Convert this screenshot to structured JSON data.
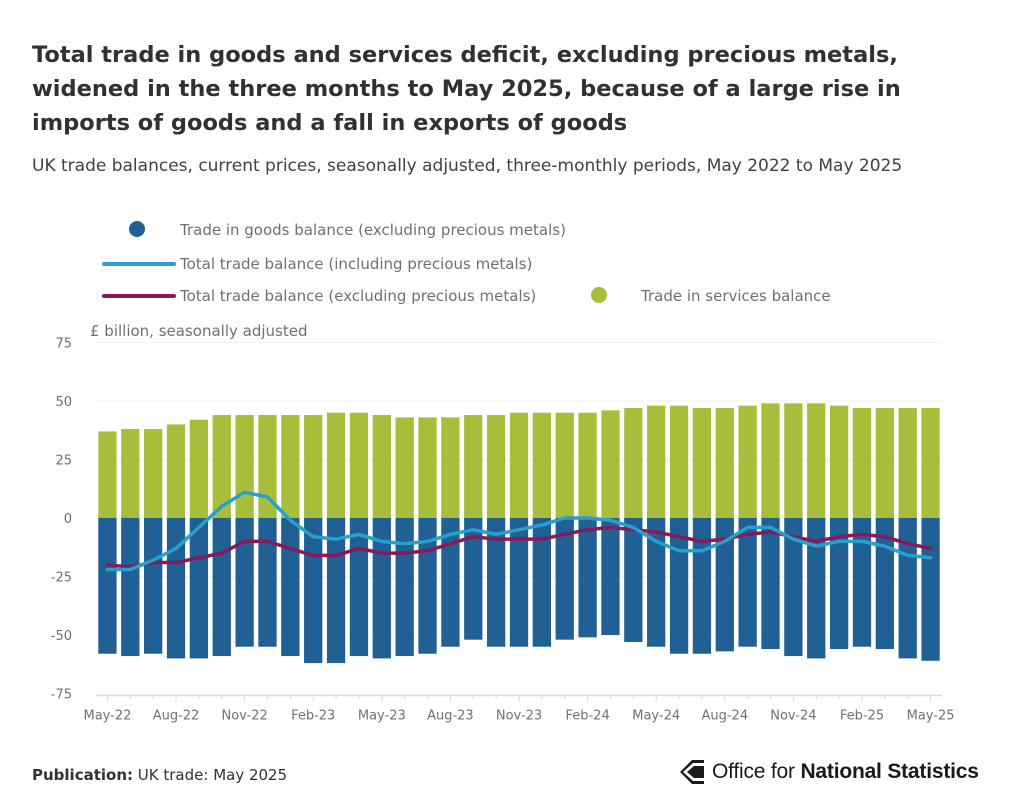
{
  "title": "Total trade in goods and services deficit, excluding precious metals, widened in the three months to May 2025, because of a large rise in imports of goods and a fall in exports of goods",
  "subtitle": "UK trade balances, current prices, seasonally adjusted, three-monthly periods, May 2022 to May 2025",
  "colors": {
    "goods": "#206095",
    "services": "#a8bd3a",
    "total_incl": "#27a0cc",
    "total_excl": "#871a5b",
    "axis_text": "#707071",
    "axis_line": "#d9d9d9"
  },
  "legend": {
    "goods": "Trade in goods balance (excluding precious metals)",
    "total_incl": "Total trade balance (including precious metals)",
    "total_excl": "Total trade balance (excluding precious metals)",
    "services": "Trade in services balance"
  },
  "footer": {
    "label": "Publication:",
    "text": "UK trade: May 2025",
    "logo_prefix": "Office for ",
    "logo_bold": "National Statistics"
  },
  "chart_data": {
    "type": "bar",
    "title": "Total trade in goods and services deficit, excluding precious metals, widened in the three months to May 2025, because of a large rise in imports of goods and a fall in exports of goods",
    "ylabel": "£ billion, seasonally adjusted",
    "xlabel": "",
    "ylim": [
      -75,
      75
    ],
    "yticks": [
      75,
      50,
      25,
      0,
      -25,
      -50,
      -75
    ],
    "tick_labels": [
      "May-22",
      "Aug-22",
      "Nov-22",
      "Feb-23",
      "May-23",
      "Aug-23",
      "Nov-23",
      "Feb-24",
      "May-24",
      "Aug-24",
      "Nov-24",
      "Feb-25",
      "May-25"
    ],
    "categories": [
      "May-22",
      "Jun-22",
      "Jul-22",
      "Aug-22",
      "Sep-22",
      "Oct-22",
      "Nov-22",
      "Dec-22",
      "Jan-23",
      "Feb-23",
      "Mar-23",
      "Apr-23",
      "May-23",
      "Jun-23",
      "Jul-23",
      "Aug-23",
      "Sep-23",
      "Oct-23",
      "Nov-23",
      "Dec-23",
      "Jan-24",
      "Feb-24",
      "Mar-24",
      "Apr-24",
      "May-24",
      "Jun-24",
      "Jul-24",
      "Aug-24",
      "Sep-24",
      "Oct-24",
      "Nov-24",
      "Dec-24",
      "Jan-25",
      "Feb-25",
      "Mar-25",
      "Apr-25",
      "May-25"
    ],
    "series": [
      {
        "name": "Trade in goods balance (excluding precious metals)",
        "kind": "bar",
        "values": [
          -58,
          -59,
          -58,
          -60,
          -60,
          -59,
          -55,
          -55,
          -59,
          -62,
          -62,
          -59,
          -60,
          -59,
          -58,
          -55,
          -52,
          -55,
          -55,
          -55,
          -52,
          -51,
          -50,
          -53,
          -55,
          -58,
          -58,
          -57,
          -55,
          -56,
          -59,
          -60,
          -56,
          -55,
          -56,
          -60,
          -61
        ]
      },
      {
        "name": "Trade in services balance",
        "kind": "bar",
        "values": [
          37,
          38,
          38,
          40,
          42,
          44,
          44,
          44,
          44,
          44,
          45,
          45,
          44,
          43,
          43,
          43,
          44,
          44,
          45,
          45,
          45,
          45,
          46,
          47,
          48,
          48,
          47,
          47,
          48,
          49,
          49,
          49,
          48,
          47,
          47,
          47,
          47
        ]
      },
      {
        "name": "Total trade balance (including precious metals)",
        "kind": "line",
        "values": [
          -22,
          -22,
          -18,
          -13,
          -4,
          5,
          11,
          9,
          -1,
          -8,
          -9,
          -7,
          -10,
          -11,
          -10,
          -7,
          -5,
          -7,
          -5,
          -3,
          0,
          0,
          -1,
          -4,
          -10,
          -14,
          -14,
          -10,
          -4,
          -4,
          -9,
          -12,
          -10,
          -10,
          -12,
          -16,
          -17
        ]
      },
      {
        "name": "Total trade balance (excluding precious metals)",
        "kind": "line",
        "values": [
          -20,
          -21,
          -19,
          -19,
          -17,
          -15,
          -10,
          -10,
          -13,
          -16,
          -16,
          -13,
          -15,
          -15,
          -14,
          -11,
          -8,
          -9,
          -9,
          -9,
          -7,
          -5,
          -4,
          -5,
          -6,
          -8,
          -10,
          -9,
          -7,
          -6,
          -8,
          -10,
          -8,
          -7,
          -8,
          -11,
          -13
        ]
      }
    ]
  }
}
